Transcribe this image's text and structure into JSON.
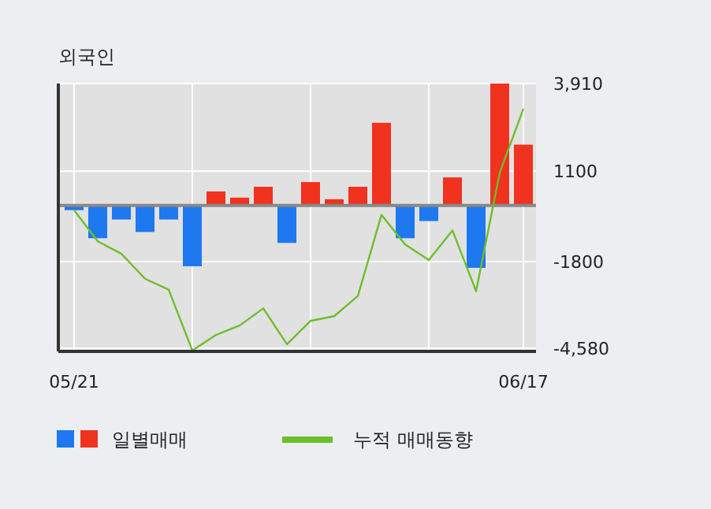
{
  "chart_data": {
    "type": "bar",
    "title": "외국인",
    "categories": [
      "05/21",
      null,
      null,
      null,
      null,
      null,
      null,
      null,
      null,
      null,
      null,
      null,
      null,
      null,
      null,
      null,
      null,
      null,
      null,
      "06/17"
    ],
    "series": [
      {
        "name": "일별매매",
        "colors": [
          "#1e78f0",
          "#1e78f0",
          "#1e78f0",
          "#1e78f0",
          "#1e78f0",
          "#1e78f0",
          "#f0321e",
          "#f0321e",
          "#f0321e",
          "#1e78f0",
          "#f0321e",
          "#f0321e",
          "#f0321e",
          "#f0321e",
          "#1e78f0",
          "#1e78f0",
          "#f0321e",
          "#1e78f0",
          "#f0321e",
          "#f0321e"
        ],
        "values": [
          -150,
          -1050,
          -450,
          -850,
          -450,
          -1950,
          450,
          250,
          600,
          -1200,
          750,
          200,
          600,
          2650,
          -1050,
          -500,
          900,
          -2000,
          3910,
          1950
        ]
      },
      {
        "name": "누적 매매동향",
        "type": "line",
        "color": "#6cbf2a",
        "values": [
          -150,
          -1150,
          -1550,
          -2350,
          -2700,
          -4650,
          -4150,
          -3850,
          -3300,
          -4450,
          -3700,
          -3550,
          -2900,
          -300,
          -1250,
          -1750,
          -800,
          -2750,
          1050,
          3100
        ]
      }
    ],
    "ylim": [
      -4680,
      3910
    ],
    "yticks": [
      {
        "value": 3910,
        "label": "3,910"
      },
      {
        "value": 1100,
        "label": "1100"
      },
      {
        "value": -1800,
        "label": "-1800"
      },
      {
        "value": -4580,
        "label": "-4,580"
      }
    ],
    "grid": true,
    "legend": "bottom"
  }
}
